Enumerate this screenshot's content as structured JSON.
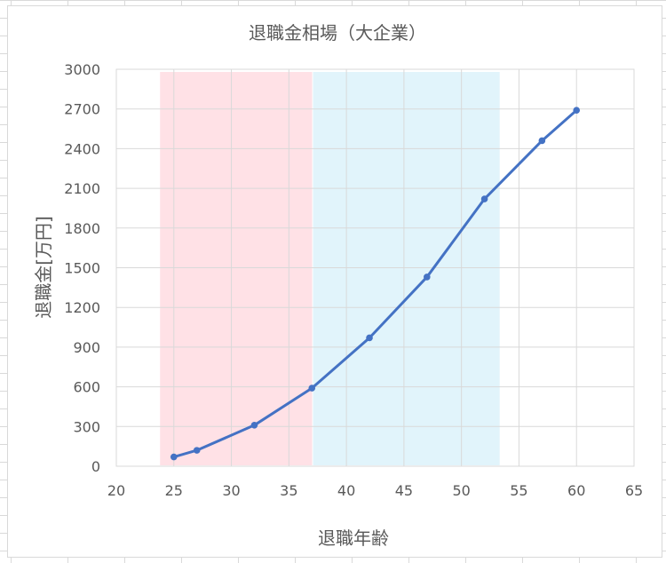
{
  "chart_data": {
    "type": "line",
    "title": "退職金相場（大企業）",
    "xlabel": "退職年齢",
    "ylabel": "退職金[万円]",
    "xlim": [
      20,
      65
    ],
    "ylim": [
      0,
      3000
    ],
    "xticks": [
      20,
      25,
      30,
      35,
      40,
      45,
      50,
      55,
      60,
      65
    ],
    "yticks": [
      0,
      300,
      600,
      900,
      1200,
      1500,
      1800,
      2100,
      2400,
      2700,
      3000
    ],
    "grid": true,
    "series": [
      {
        "x": [
          25,
          27,
          32,
          37,
          42,
          47,
          52,
          57,
          60
        ],
        "y": [
          70,
          120,
          310,
          590,
          970,
          1430,
          2020,
          2460,
          2690
        ]
      }
    ],
    "shaded_ranges": [
      {
        "x": [
          23.8,
          37.1
        ],
        "color": "#ffe1e6"
      },
      {
        "x": [
          37.1,
          53.4
        ],
        "color": "#e1f4fb"
      }
    ],
    "line_color": "#4472c4"
  }
}
